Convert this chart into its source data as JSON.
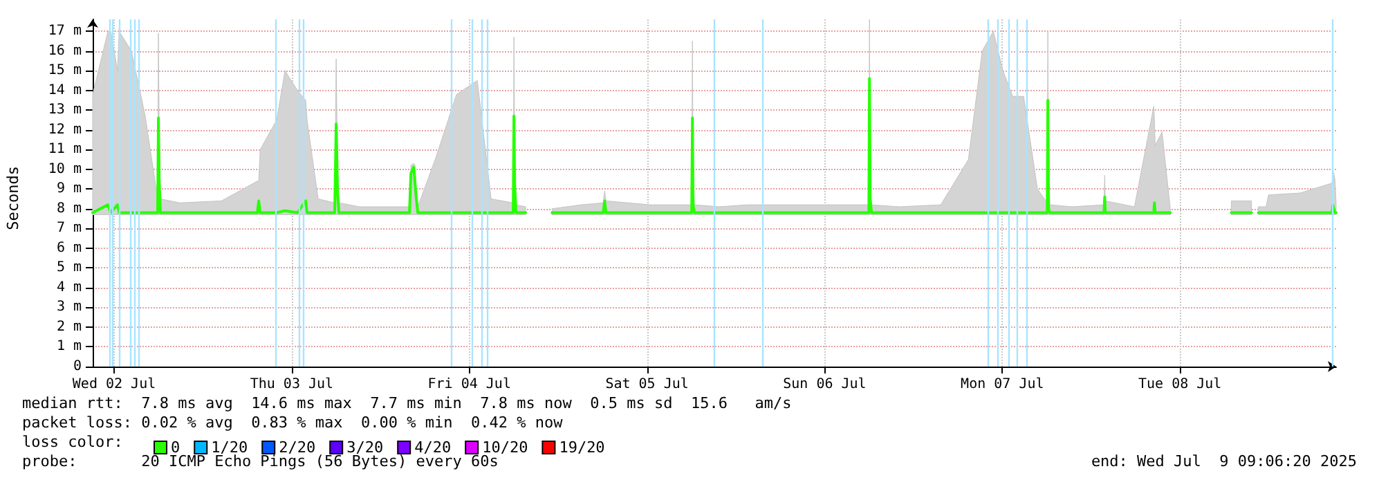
{
  "chart_data": {
    "type": "line",
    "ylabel": "Seconds",
    "legend_title": "loss color:",
    "legend": "bottom left",
    "grid": true,
    "marker": "none",
    "line_style": "solid",
    "xlim": [
      "2025-07-02T09:06",
      "2025-07-09T09:06"
    ],
    "xticks": [
      {
        "value": "2025-07-02T12:00",
        "label": "Wed 02 Jul"
      },
      {
        "value": "2025-07-03T12:00",
        "label": "Thu 03 Jul"
      },
      {
        "value": "2025-07-04T12:00",
        "label": "Fri 04 Jul"
      },
      {
        "value": "2025-07-05T12:00",
        "label": "Sat 05 Jul"
      },
      {
        "value": "2025-07-06T12:00",
        "label": "Sun 06 Jul"
      },
      {
        "value": "2025-07-07T12:00",
        "label": "Mon 07 Jul"
      },
      {
        "value": "2025-07-08T12:00",
        "label": "Tue 08 Jul"
      }
    ],
    "ylim": [
      0,
      17.6
    ],
    "yticks": [
      0,
      {
        "value": 1,
        "label": "1 m"
      },
      {
        "value": 2,
        "label": "2 m"
      },
      {
        "value": 3,
        "label": "3 m"
      },
      {
        "value": 4,
        "label": "4 m"
      },
      {
        "value": 5,
        "label": "5 m"
      },
      {
        "value": 6,
        "label": "6 m"
      },
      {
        "value": 7,
        "label": "7 m"
      },
      {
        "value": 8,
        "label": "8 m"
      },
      {
        "value": 9,
        "label": "9 m"
      },
      {
        "value": 10,
        "label": "10 m"
      },
      {
        "value": 11,
        "label": "11 m"
      },
      {
        "value": 12,
        "label": "12 m"
      },
      {
        "value": 13,
        "label": "13 m"
      },
      {
        "value": 14,
        "label": "14 m"
      },
      {
        "value": 15,
        "label": "15 m"
      },
      {
        "value": 16,
        "label": "16 m"
      },
      {
        "value": 17,
        "label": "17 m"
      }
    ],
    "x": [
      "2025-07-02T09:06",
      "2025-07-02T11:10",
      "2025-07-02T11:32",
      "2025-07-02T12:28",
      "2025-07-02T12:40",
      "2025-07-02T14:20",
      "2025-07-02T16:12",
      "2025-07-02T17:53",
      "2025-07-02T17:59",
      "2025-07-02T18:05",
      "2025-07-02T18:16",
      "2025-07-02T20:53",
      "2025-07-03T02:30",
      "2025-07-03T07:21",
      "2025-07-03T07:32",
      "2025-07-03T07:44",
      "2025-07-03T09:58",
      "2025-07-03T11:05",
      "2025-07-03T12:46",
      "2025-07-03T13:53",
      "2025-07-03T14:04",
      "2025-07-03T15:34",
      "2025-07-03T17:48",
      "2025-07-03T18:00",
      "2025-07-03T18:11",
      "2025-07-03T18:22",
      "2025-07-03T21:10",
      "2025-07-04T03:54",
      "2025-07-04T04:06",
      "2025-07-04T04:28",
      "2025-07-04T04:39",
      "2025-07-04T04:50",
      "2025-07-04T05:02",
      "2025-07-04T07:28",
      "2025-07-04T10:16",
      "2025-07-04T13:04",
      "2025-07-04T14:56",
      "2025-07-04T17:55",
      "2025-07-04T18:01",
      "2025-07-04T18:07",
      "2025-07-04T18:18",
      "2025-07-04T19:36",
      "2025-07-04T21:27",
      "2025-07-04T23:10",
      "2025-07-05T03:05",
      "2025-07-05T06:05",
      "2025-07-05T06:16",
      "2025-07-05T06:27",
      "2025-07-05T12:26",
      "2025-07-05T18:02",
      "2025-07-05T18:08",
      "2025-07-05T18:13",
      "2025-07-05T18:25",
      "2025-07-05T21:47",
      "2025-07-06T01:31",
      "2025-07-06T05:15",
      "2025-07-06T12:44",
      "2025-07-06T17:58",
      "2025-07-06T18:03",
      "2025-07-06T18:09",
      "2025-07-06T18:20",
      "2025-07-06T22:05",
      "2025-07-07T03:41",
      "2025-07-07T07:25",
      "2025-07-07T09:17",
      "2025-07-07T10:47",
      "2025-07-07T12:05",
      "2025-07-07T13:24",
      "2025-07-07T14:53",
      "2025-07-07T16:45",
      "2025-07-07T18:04",
      "2025-07-07T18:09",
      "2025-07-07T18:15",
      "2025-07-07T18:26",
      "2025-07-07T21:26",
      "2025-07-08T01:44",
      "2025-07-08T01:50",
      "2025-07-08T01:55",
      "2025-07-08T05:51",
      "2025-07-08T08:28",
      "2025-07-08T08:33",
      "2025-07-08T08:39",
      "2025-07-08T09:35",
      "2025-07-08T10:42",
      "2025-07-08T13:20",
      "2025-07-08T18:56",
      "2025-07-08T21:40",
      "2025-07-08T22:10",
      "2025-07-08T22:35",
      "2025-07-08T23:20",
      "2025-07-08T23:38",
      "2025-07-08T23:58",
      "2025-07-09T04:15",
      "2025-07-09T08:33",
      "2025-07-09T08:39",
      "2025-07-09T08:56",
      "2025-07-09T09:06"
    ],
    "series": [
      {
        "name": "0",
        "color": "#26ff00",
        "values": [
          7.8,
          8.2,
          7.8,
          8.2,
          7.8,
          7.8,
          7.8,
          7.8,
          12.6,
          9.4,
          7.8,
          7.8,
          7.8,
          7.8,
          8.4,
          7.8,
          7.8,
          7.9,
          7.8,
          8.4,
          7.8,
          7.8,
          7.8,
          12.3,
          8.9,
          7.8,
          7.8,
          7.8,
          9.8,
          10.1,
          9.3,
          8.5,
          7.8,
          7.8,
          7.8,
          7.8,
          7.8,
          7.8,
          12.7,
          9.2,
          7.8,
          7.8,
          null,
          7.8,
          7.8,
          7.8,
          8.4,
          7.8,
          7.8,
          7.8,
          12.6,
          8.2,
          7.8,
          7.8,
          7.8,
          7.8,
          7.8,
          7.8,
          14.6,
          8.5,
          7.8,
          7.8,
          7.8,
          7.8,
          7.8,
          7.8,
          7.8,
          7.8,
          7.8,
          7.8,
          7.8,
          13.5,
          8.0,
          7.8,
          7.8,
          7.8,
          8.6,
          7.8,
          7.8,
          7.8,
          8.3,
          7.8,
          7.8,
          7.8,
          null,
          7.8,
          7.8,
          null,
          7.8,
          7.8,
          7.8,
          7.8,
          7.8,
          7.8,
          8.2,
          7.8,
          7.8
        ],
        "lower": [
          7.7,
          7.7,
          7.7,
          7.7,
          7.7,
          7.7,
          7.7,
          7.7,
          7.7,
          7.7,
          7.7,
          7.7,
          7.7,
          7.7,
          7.7,
          7.7,
          7.7,
          7.7,
          7.7,
          7.7,
          7.7,
          7.7,
          7.7,
          7.7,
          7.7,
          7.7,
          7.7,
          7.7,
          7.7,
          7.7,
          7.7,
          7.7,
          7.7,
          7.7,
          7.7,
          7.7,
          7.7,
          7.7,
          7.7,
          7.7,
          7.7,
          7.7,
          null,
          7.7,
          7.7,
          7.7,
          7.7,
          7.7,
          7.7,
          7.7,
          7.7,
          7.7,
          7.7,
          7.7,
          7.7,
          7.7,
          7.7,
          7.7,
          7.7,
          7.7,
          7.7,
          7.7,
          7.7,
          7.7,
          7.7,
          7.7,
          7.7,
          7.7,
          7.7,
          7.7,
          7.7,
          7.7,
          7.7,
          7.7,
          7.7,
          7.7,
          7.7,
          7.7,
          7.7,
          7.7,
          7.7,
          7.7,
          7.7,
          7.7,
          null,
          7.7,
          7.7,
          null,
          7.7,
          7.7,
          7.7,
          7.7,
          7.7,
          7.7,
          7.7,
          7.7,
          7.7
        ],
        "upper": [
          13.8,
          17,
          17,
          15,
          17,
          16,
          12.7,
          8.5,
          16.9,
          12,
          8.5,
          8.3,
          8.4,
          9.4,
          9.4,
          11,
          12.5,
          15,
          14,
          13.5,
          12.5,
          8.5,
          8.3,
          15.6,
          10,
          8.3,
          8.1,
          8.1,
          10.2,
          10.3,
          10.2,
          9,
          8.1,
          10.6,
          13.8,
          14.5,
          8.5,
          8.3,
          16.7,
          11,
          8.2,
          8.1,
          null,
          8,
          8.2,
          8.3,
          8.9,
          8.4,
          8.2,
          8.2,
          16.5,
          9.5,
          8.2,
          8.1,
          8.2,
          8.2,
          8.2,
          8.2,
          17.6,
          9,
          8.2,
          8.1,
          8.2,
          10.5,
          16,
          17,
          15,
          13.7,
          13.7,
          9,
          8.3,
          17,
          9.5,
          8.2,
          8.1,
          8.2,
          9.7,
          8.4,
          8.1,
          13.2,
          12.5,
          11.2,
          11.9,
          8,
          null,
          8.4,
          8.4,
          null,
          8.1,
          8.1,
          8.1,
          8.7,
          8.8,
          9.3,
          10,
          9.5,
          8.3
        ]
      },
      {
        "name": "1/20",
        "color": "#00b8ff",
        "values": [
          null,
          null,
          null,
          null,
          null,
          null,
          null,
          null,
          null,
          null,
          null,
          null,
          null,
          null,
          null,
          null,
          null,
          null,
          null,
          null,
          null,
          null,
          null,
          null,
          null,
          null,
          null,
          null,
          null,
          null,
          null,
          null,
          null,
          null,
          null,
          null,
          null,
          null,
          null,
          null,
          null,
          null,
          null,
          null,
          null,
          null,
          null,
          null,
          null,
          null,
          null,
          null,
          null,
          null,
          null,
          null,
          null,
          null,
          null,
          null,
          null,
          null,
          null,
          null,
          null,
          null,
          null,
          null,
          null,
          null,
          null,
          null,
          null,
          null,
          null,
          null,
          null,
          null,
          null,
          null,
          null,
          null,
          null,
          null,
          null,
          null,
          null,
          null,
          null,
          null,
          null,
          null,
          null,
          null,
          null,
          null,
          null
        ]
      },
      {
        "name": "2/20",
        "color": "#0059ff",
        "values": [
          null,
          null,
          null,
          null,
          null,
          null,
          null,
          null,
          null,
          null,
          null,
          null,
          null,
          null,
          null,
          null,
          null,
          null,
          null,
          null,
          null,
          null,
          null,
          null,
          null,
          null,
          null,
          null,
          null,
          null,
          null,
          null,
          null,
          null,
          null,
          null,
          null,
          null,
          null,
          null,
          null,
          null,
          null,
          null,
          null,
          null,
          null,
          null,
          null,
          null,
          null,
          null,
          null,
          null,
          null,
          null,
          null,
          null,
          null,
          null,
          null,
          null,
          null,
          null,
          null,
          null,
          null,
          null,
          null,
          null,
          null,
          null,
          null,
          null,
          null,
          null,
          null,
          null,
          null,
          null,
          null,
          null,
          null,
          null,
          null,
          null,
          null,
          null,
          null,
          null,
          null,
          null,
          null,
          null,
          null,
          null,
          null
        ]
      },
      {
        "name": "3/20",
        "color": "#5e00ff",
        "values": [
          null,
          null,
          null,
          null,
          null,
          null,
          null,
          null,
          null,
          null,
          null,
          null,
          null,
          null,
          null,
          null,
          null,
          null,
          null,
          null,
          null,
          null,
          null,
          null,
          null,
          null,
          null,
          null,
          null,
          null,
          null,
          null,
          null,
          null,
          null,
          null,
          null,
          null,
          null,
          null,
          null,
          null,
          null,
          null,
          null,
          null,
          null,
          null,
          null,
          null,
          null,
          null,
          null,
          null,
          null,
          null,
          null,
          null,
          null,
          null,
          null,
          null,
          null,
          null,
          null,
          null,
          null,
          null,
          null,
          null,
          null,
          null,
          null,
          null,
          null,
          null,
          null,
          null,
          null,
          null,
          null,
          null,
          null,
          null,
          null,
          null,
          null,
          null,
          null,
          null,
          null,
          null,
          null,
          null,
          null,
          null,
          null
        ]
      },
      {
        "name": "4/20",
        "color": "#7e00ff",
        "values": [
          null,
          null,
          null,
          null,
          null,
          null,
          null,
          null,
          null,
          null,
          null,
          null,
          null,
          null,
          null,
          null,
          null,
          null,
          null,
          null,
          null,
          null,
          null,
          null,
          null,
          null,
          null,
          null,
          null,
          null,
          null,
          null,
          null,
          null,
          null,
          null,
          null,
          null,
          null,
          null,
          null,
          null,
          null,
          null,
          null,
          null,
          null,
          null,
          null,
          null,
          null,
          null,
          null,
          null,
          null,
          null,
          null,
          null,
          null,
          null,
          null,
          null,
          null,
          null,
          null,
          null,
          null,
          null,
          null,
          null,
          null,
          null,
          null,
          null,
          null,
          null,
          null,
          null,
          null,
          null,
          null,
          null,
          null,
          null,
          null,
          null,
          null,
          null,
          null,
          null,
          null,
          null,
          null,
          null,
          null,
          null,
          null
        ]
      },
      {
        "name": "10/20",
        "color": "#dd00ff",
        "values": [
          null,
          null,
          null,
          null,
          null,
          null,
          null,
          null,
          null,
          null,
          null,
          null,
          null,
          null,
          null,
          null,
          null,
          null,
          null,
          null,
          null,
          null,
          null,
          null,
          null,
          null,
          null,
          null,
          null,
          null,
          null,
          null,
          null,
          null,
          null,
          null,
          null,
          null,
          null,
          null,
          null,
          null,
          null,
          null,
          null,
          null,
          null,
          null,
          null,
          null,
          null,
          null,
          null,
          null,
          null,
          null,
          null,
          null,
          null,
          null,
          null,
          null,
          null,
          null,
          null,
          null,
          null,
          null,
          null,
          null,
          null,
          null,
          null,
          null,
          null,
          null,
          null,
          null,
          null,
          null,
          null,
          null,
          null,
          null,
          null,
          null,
          null,
          null,
          null,
          null,
          null,
          null,
          null,
          null,
          null,
          null,
          null
        ]
      },
      {
        "name": "19/20",
        "color": "#ff0000",
        "values": [
          null,
          null,
          null,
          null,
          null,
          null,
          null,
          null,
          null,
          null,
          null,
          null,
          null,
          null,
          null,
          null,
          null,
          null,
          null,
          null,
          null,
          null,
          null,
          null,
          null,
          null,
          null,
          null,
          null,
          null,
          null,
          null,
          null,
          null,
          null,
          null,
          null,
          null,
          null,
          null,
          null,
          null,
          null,
          null,
          null,
          null,
          null,
          null,
          null,
          null,
          null,
          null,
          null,
          null,
          null,
          null,
          null,
          null,
          null,
          null,
          null,
          null,
          null,
          null,
          null,
          null,
          null,
          null,
          null,
          null,
          null,
          null,
          null,
          null,
          null,
          null,
          null,
          null,
          null,
          null,
          null,
          null,
          null,
          null,
          null,
          null,
          null,
          null,
          null,
          null,
          null,
          null,
          null,
          null,
          null,
          null,
          null
        ]
      }
    ],
    "ref_lines": [
      {
        "axis": "x",
        "value": "2025-07-02T11:20",
        "color": "#a8e4ff"
      },
      {
        "axis": "x",
        "value": "2025-07-02T11:42",
        "color": "#a8e4ff"
      },
      {
        "axis": "x",
        "value": "2025-07-02T12:40",
        "color": "#a8e4ff"
      },
      {
        "axis": "x",
        "value": "2025-07-02T14:10",
        "color": "#a8e4ff"
      },
      {
        "axis": "x",
        "value": "2025-07-02T14:42",
        "color": "#a8e4ff"
      },
      {
        "axis": "x",
        "value": "2025-07-02T15:18",
        "color": "#a8e4ff"
      },
      {
        "axis": "x",
        "value": "2025-07-03T09:48",
        "color": "#a8e4ff"
      },
      {
        "axis": "x",
        "value": "2025-07-03T12:57",
        "color": "#a8e4ff"
      },
      {
        "axis": "x",
        "value": "2025-07-03T13:30",
        "color": "#a8e4ff"
      },
      {
        "axis": "x",
        "value": "2025-07-04T09:30",
        "color": "#a8e4ff"
      },
      {
        "axis": "x",
        "value": "2025-07-04T12:18",
        "color": "#a8e4ff"
      },
      {
        "axis": "x",
        "value": "2025-07-04T13:36",
        "color": "#a8e4ff"
      },
      {
        "axis": "x",
        "value": "2025-07-04T14:24",
        "color": "#a8e4ff"
      },
      {
        "axis": "x",
        "value": "2025-07-05T21:00",
        "color": "#a8e4ff"
      },
      {
        "axis": "x",
        "value": "2025-07-06T03:36",
        "color": "#a8e4ff"
      },
      {
        "axis": "x",
        "value": "2025-07-07T10:00",
        "color": "#a8e4ff"
      },
      {
        "axis": "x",
        "value": "2025-07-07T11:18",
        "color": "#a8e4ff"
      },
      {
        "axis": "x",
        "value": "2025-07-07T12:48",
        "color": "#a8e4ff"
      },
      {
        "axis": "x",
        "value": "2025-07-07T14:00",
        "color": "#a8e4ff"
      },
      {
        "axis": "x",
        "value": "2025-07-07T15:18",
        "color": "#a8e4ff"
      },
      {
        "axis": "x",
        "value": "2025-07-09T08:30",
        "color": "#a8e4ff"
      }
    ],
    "annotations": [
      "median rtt:  7.8 ms avg  14.6 ms max  7.7 ms min  7.8 ms now  0.5 ms sd  15.6   am/s",
      "packet loss: 0.02 % avg  0.83 % max  0.00 % min  0.42 % now",
      "probe:       20 ICMP Echo Pings (56 Bytes) every 60s",
      "end: Wed Jul  9 09:06:20 2025"
    ]
  }
}
